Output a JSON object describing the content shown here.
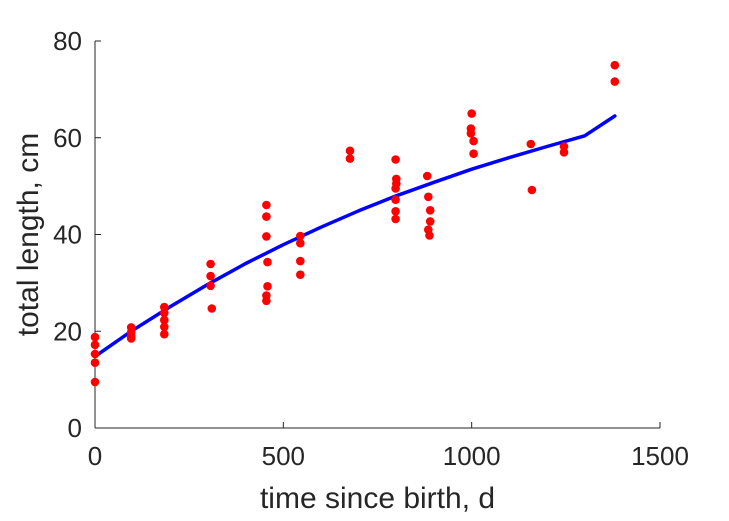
{
  "chart_data": {
    "type": "scatter",
    "title": "",
    "xlabel": "time since birth, d",
    "ylabel": "total length, cm",
    "xlim": [
      0,
      1500
    ],
    "ylim": [
      0,
      80
    ],
    "xticks": [
      "0",
      "500",
      "1000",
      "1500"
    ],
    "yticks": [
      "0",
      "20",
      "40",
      "60",
      "80"
    ],
    "grid": false,
    "colors": {
      "points": "#ff0000",
      "fit": "#0000ff",
      "axes": "#262626"
    },
    "points": [
      [
        0,
        18.8
      ],
      [
        0,
        17.2
      ],
      [
        0,
        15.3
      ],
      [
        0,
        13.5
      ],
      [
        0,
        9.5
      ],
      [
        96,
        20.8
      ],
      [
        96,
        19.8
      ],
      [
        96,
        19.0
      ],
      [
        96,
        18.5
      ],
      [
        184,
        25.0
      ],
      [
        184,
        23.8
      ],
      [
        184,
        22.3
      ],
      [
        184,
        20.9
      ],
      [
        184,
        19.4
      ],
      [
        307,
        33.9
      ],
      [
        307,
        31.4
      ],
      [
        307,
        29.4
      ],
      [
        310,
        24.7
      ],
      [
        455,
        46.1
      ],
      [
        455,
        43.7
      ],
      [
        455,
        39.6
      ],
      [
        458,
        34.3
      ],
      [
        458,
        29.3
      ],
      [
        455,
        27.4
      ],
      [
        455,
        26.3
      ],
      [
        545,
        39.7
      ],
      [
        545,
        38.2
      ],
      [
        545,
        34.5
      ],
      [
        545,
        31.7
      ],
      [
        677,
        57.3
      ],
      [
        677,
        55.7
      ],
      [
        798,
        55.5
      ],
      [
        800,
        51.5
      ],
      [
        800,
        50.5
      ],
      [
        798,
        49.5
      ],
      [
        798,
        47.2
      ],
      [
        798,
        44.8
      ],
      [
        798,
        43.2
      ],
      [
        882,
        52.1
      ],
      [
        885,
        47.8
      ],
      [
        890,
        45.0
      ],
      [
        890,
        42.7
      ],
      [
        885,
        41.0
      ],
      [
        888,
        39.8
      ],
      [
        1000,
        65.0
      ],
      [
        998,
        61.9
      ],
      [
        998,
        60.9
      ],
      [
        1005,
        59.3
      ],
      [
        1005,
        56.7
      ],
      [
        1157,
        58.7
      ],
      [
        1160,
        49.2
      ],
      [
        1245,
        58.2
      ],
      [
        1245,
        57.0
      ],
      [
        1380,
        75.0
      ],
      [
        1380,
        71.6
      ]
    ],
    "fit_line": {
      "x": [
        0,
        100,
        200,
        300,
        400,
        500,
        600,
        700,
        800,
        900,
        1000,
        1100,
        1200,
        1300,
        1380
      ],
      "y": [
        14.8,
        20.2,
        25.1,
        29.7,
        34.0,
        37.9,
        41.5,
        44.9,
        48.0,
        50.8,
        53.5,
        55.9,
        58.2,
        60.4,
        64.5
      ]
    }
  }
}
